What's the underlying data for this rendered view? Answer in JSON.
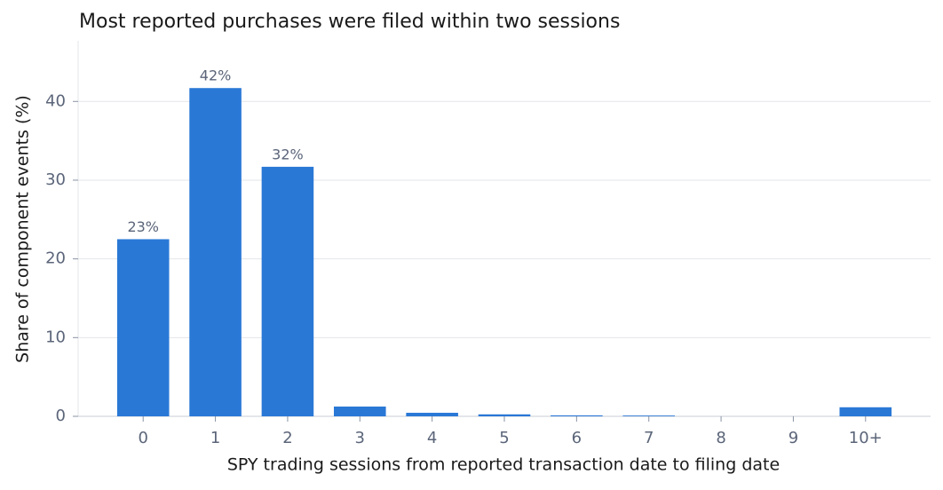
{
  "chart_data": {
    "type": "bar",
    "title": "Most reported purchases were filed within two sessions",
    "x_label": "SPY trading sessions from reported transaction date to filing date",
    "y_label": "Share of component events (%)",
    "categories": [
      "0",
      "1",
      "2",
      "3",
      "4",
      "5",
      "6",
      "7",
      "8",
      "9",
      "10+"
    ],
    "values": [
      22.5,
      41.7,
      31.7,
      1.24,
      0.45,
      0.25,
      0.12,
      0.1,
      0,
      0,
      1.15
    ],
    "value_labels": [
      "23%",
      "42%",
      "32%",
      null,
      null,
      null,
      null,
      null,
      null,
      null,
      null
    ],
    "color": "#2a78d6",
    "ylim": [
      0,
      47.7
    ],
    "yticks": [
      0,
      10,
      20,
      30,
      40
    ],
    "grid": true
  }
}
